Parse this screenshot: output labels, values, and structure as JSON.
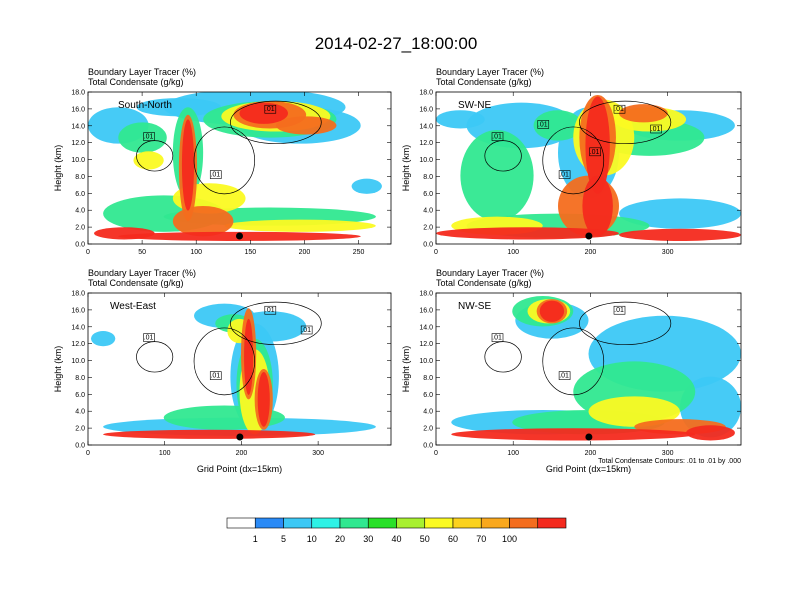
{
  "title": "2014-02-27_18:00:00",
  "chart_data": {
    "type": "heatmap",
    "title": "2014-02-27_18:00:00",
    "panels": [
      {
        "name": "South-North",
        "subtitle1": "Boundary Layer Tracer   (%)",
        "subtitle2": "Total Condensate   (g/kg)",
        "ylabel": "Height (km)",
        "xlabel": "",
        "xlim": [
          0,
          280
        ],
        "ylim": [
          0,
          18
        ],
        "xticks": [
          0,
          50,
          100,
          150,
          200,
          250
        ],
        "yticks": [
          "0.0",
          "2.0",
          "4.0",
          "6.0",
          "8.0",
          "10.0",
          "12.0",
          "14.0",
          "16.0",
          "18.0"
        ],
        "marker_x": 140,
        "contour_labels": [
          ".01",
          ".01",
          ".01"
        ]
      },
      {
        "name": "SW-NE",
        "subtitle1": "Boundary Layer Tracer   (%)",
        "subtitle2": "Total Condensate   (g/kg)",
        "ylabel": "Height (km)",
        "xlabel": "",
        "xlim": [
          0,
          395
        ],
        "ylim": [
          0,
          18
        ],
        "xticks": [
          0,
          100,
          200,
          300
        ],
        "yticks": [
          "0.0",
          "2.0",
          "4.0",
          "6.0",
          "8.0",
          "10.0",
          "12.0",
          "14.0",
          "16.0",
          "18.0"
        ],
        "marker_x": 198,
        "contour_labels": [
          ".01",
          ".01",
          ".01",
          ".01",
          ".01",
          ".01"
        ]
      },
      {
        "name": "West-East",
        "subtitle1": "Boundary Layer Tracer   (%)",
        "subtitle2": "Total Condensate   (g/kg)",
        "ylabel": "Height (km)",
        "xlabel": "Grid Point (dx=15km)",
        "xlim": [
          0,
          395
        ],
        "ylim": [
          0,
          18
        ],
        "xticks": [
          0,
          100,
          200,
          300
        ],
        "yticks": [
          "0.0",
          "2.0",
          "4.0",
          "6.0",
          "8.0",
          "10.0",
          "12.0",
          "14.0",
          "16.0",
          "18.0"
        ],
        "marker_x": 198,
        "contour_labels": [
          ".01",
          ".01",
          ".01",
          ".01"
        ]
      },
      {
        "name": "NW-SE",
        "subtitle1": "Boundary Layer Tracer   (%)",
        "subtitle2": "Total Condensate   (g/kg)",
        "ylabel": "Height (km)",
        "xlabel": "Grid Point (dx=15km)",
        "xlim": [
          0,
          395
        ],
        "ylim": [
          0,
          18
        ],
        "xticks": [
          0,
          100,
          200,
          300
        ],
        "yticks": [
          "0.0",
          "2.0",
          "4.0",
          "6.0",
          "8.0",
          "10.0",
          "12.0",
          "14.0",
          "16.0",
          "18.0"
        ],
        "marker_x": 198,
        "contour_labels": [
          ".01",
          ".01",
          ".01"
        ]
      }
    ],
    "contour_note": "Total Condensate Contours: .01 to .01 by .000",
    "colorbar": {
      "labels": [
        "1",
        "5",
        "10",
        "20",
        "30",
        "40",
        "50",
        "60",
        "70",
        "100"
      ],
      "colors": [
        "#ffffff",
        "#2a8af6",
        "#3cc8f5",
        "#2ef2e6",
        "#30e890",
        "#28e028",
        "#a8f030",
        "#fbfa22",
        "#fbd21e",
        "#f9a81e",
        "#f46d1e",
        "#f42a1e"
      ]
    }
  }
}
